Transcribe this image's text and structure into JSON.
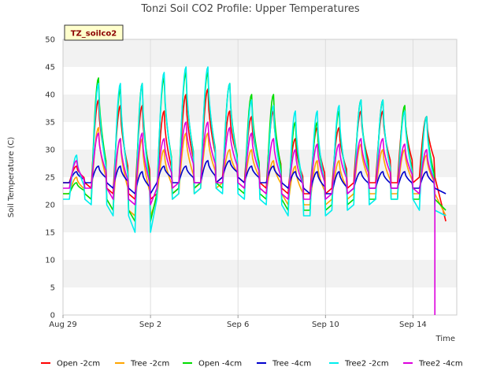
{
  "chart_data": {
    "type": "line",
    "title": "Tonzi Soil CO2 Profile: Upper Temperatures",
    "badge": "TZ_soilco2",
    "xlabel": "Time",
    "ylabel": "Soil Temperature (C)",
    "ylim": [
      0,
      50
    ],
    "yticks": [
      0,
      5,
      10,
      15,
      20,
      25,
      30,
      35,
      40,
      45,
      50
    ],
    "xlim": [
      "2023-08-29",
      "2023-09-16"
    ],
    "xticks": [
      {
        "date": "2023-08-29",
        "label": "Aug 29"
      },
      {
        "date": "2023-09-02",
        "label": "Sep 2"
      },
      {
        "date": "2023-09-06",
        "label": "Sep 6"
      },
      {
        "date": "2023-09-10",
        "label": "Sep 10"
      },
      {
        "date": "2023-09-14",
        "label": "Sep 14"
      }
    ],
    "grid": true,
    "legend_position": "bottom",
    "background_bands": [
      "#f2f2f2",
      "#ffffff"
    ],
    "days": [
      "2023-08-29",
      "2023-08-30",
      "2023-08-31",
      "2023-09-01",
      "2023-09-02",
      "2023-09-03",
      "2023-09-04",
      "2023-09-05",
      "2023-09-06",
      "2023-09-07",
      "2023-09-08",
      "2023-09-09",
      "2023-09-10",
      "2023-09-11",
      "2023-09-12",
      "2023-09-13",
      "2023-09-14"
    ],
    "series": [
      {
        "name": "Open -2cm",
        "color": "#ff0000",
        "daily_max": [
          27,
          39,
          38,
          38,
          37,
          40,
          41,
          37,
          36,
          37,
          32,
          34,
          34,
          37,
          37,
          37,
          36
        ],
        "daily_min": [
          24,
          23,
          22,
          21,
          22,
          23,
          24,
          25,
          24,
          23,
          22,
          22,
          23,
          24,
          24,
          24,
          25
        ],
        "end": {
          "date": "2023-09-15",
          "time": "12:00",
          "value": 17
        }
      },
      {
        "name": "Tree -2cm",
        "color": "#ffa500",
        "daily_max": [
          25,
          34,
          32,
          32,
          30,
          33,
          33,
          30,
          30,
          28,
          27,
          28,
          28,
          31,
          30,
          30,
          29
        ],
        "daily_min": [
          22,
          21,
          19,
          18,
          21,
          22,
          23,
          24,
          23,
          22,
          20,
          20,
          21,
          22,
          22,
          22,
          22
        ],
        "end": {
          "date": "2023-09-15",
          "time": "12:00",
          "value": 18
        }
      },
      {
        "name": "Open -4cm",
        "color": "#00dd00",
        "daily_max": [
          24,
          43,
          41,
          42,
          43,
          44,
          44,
          42,
          40,
          40,
          35,
          35,
          37,
          39,
          39,
          38,
          36
        ],
        "daily_min": [
          22,
          21,
          19,
          17,
          22,
          23,
          24,
          23,
          22,
          21,
          19,
          19,
          20,
          21,
          21,
          21,
          21
        ],
        "end": {
          "date": "2023-09-15",
          "time": "12:00",
          "value": 19
        }
      },
      {
        "name": "Tree -4cm",
        "color": "#0000cc",
        "daily_max": [
          26,
          27,
          27,
          26,
          27,
          27,
          28,
          28,
          27,
          27,
          26,
          26,
          26,
          26,
          26,
          26,
          26
        ],
        "daily_min": [
          24,
          24,
          23,
          22,
          24,
          24,
          24,
          25,
          24,
          24,
          23,
          22,
          22,
          23,
          23,
          23,
          23
        ],
        "end": {
          "date": "2023-09-15",
          "time": "12:00",
          "value": 22
        }
      },
      {
        "name": "Tree2 -2cm",
        "color": "#00eeee",
        "daily_max": [
          29,
          42,
          42,
          42,
          44,
          45,
          45,
          42,
          39,
          38,
          37,
          37,
          38,
          39,
          39,
          37,
          36
        ],
        "daily_min": [
          21,
          20,
          18,
          15,
          21,
          22,
          23,
          22,
          21,
          20,
          18,
          18,
          19,
          20,
          21,
          21,
          19
        ],
        "end": {
          "date": "2023-09-15",
          "time": "12:00",
          "value": 18
        }
      },
      {
        "name": "Tree2 -4cm",
        "color": "#dd00dd",
        "daily_max": [
          28,
          33,
          32,
          33,
          32,
          35,
          35,
          34,
          33,
          32,
          30,
          31,
          31,
          32,
          32,
          31,
          30
        ],
        "daily_min": [
          23,
          23,
          21,
          20,
          23,
          24,
          24,
          24,
          23,
          22,
          21,
          21,
          22,
          23,
          23,
          23,
          22
        ],
        "end": {
          "date": "2023-09-15",
          "time": "00:00",
          "value": 0
        }
      }
    ]
  }
}
